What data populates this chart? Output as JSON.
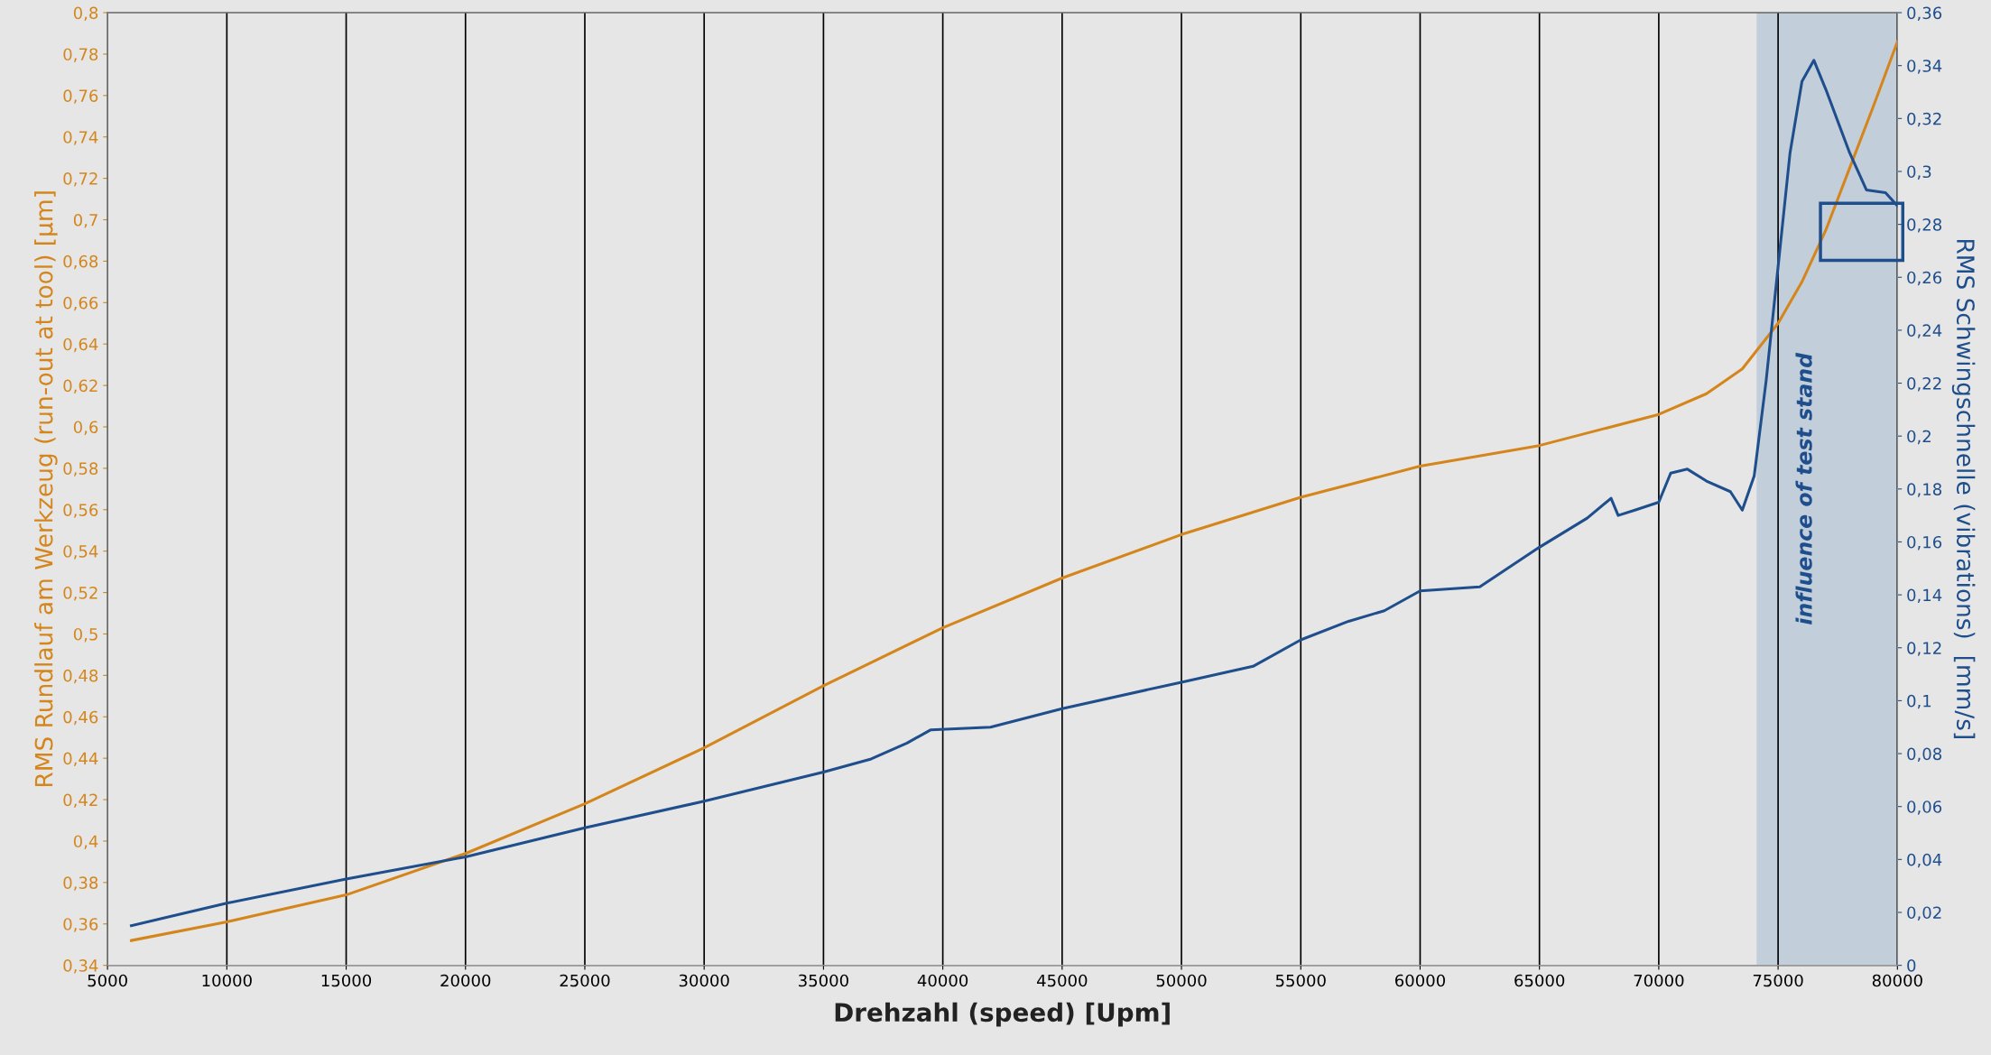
{
  "chart_data": {
    "type": "line",
    "xlabel": "Drehzahl (speed) [Upm]",
    "ylabel": "RMS Rundlauf am Werkzeug (run-out at tool) [µm]",
    "y2label": "RMS Schwingschnelle (vibrations)  [mm/s]",
    "series": [
      {
        "color": "#d4861c",
        "x": [
          6000,
          10000,
          15000,
          20000,
          25000,
          30000,
          35000,
          40000,
          45000,
          50000,
          55000,
          60000,
          65000,
          70000,
          72000,
          73500,
          75000,
          76000,
          77000,
          78000,
          79000,
          80000
        ],
        "values": [
          0.352,
          0.361,
          0.374,
          0.394,
          0.418,
          0.445,
          0.475,
          0.503,
          0.527,
          0.548,
          0.566,
          0.581,
          0.591,
          0.606,
          0.616,
          0.628,
          0.65,
          0.67,
          0.695,
          0.725,
          0.755,
          0.786
        ]
      },
      {
        "color": "#1f4e8c",
        "axis": "y2",
        "x": [
          6000,
          10000,
          15000,
          20000,
          25000,
          30000,
          35000,
          37000,
          38500,
          39500,
          42000,
          45000,
          50000,
          53000,
          55000,
          57000,
          58500,
          60000,
          62500,
          65000,
          67000,
          68000,
          68300,
          69000,
          70000,
          70500,
          71200,
          72000,
          73000,
          73500,
          74000,
          74500,
          75000,
          75500,
          76000,
          76500,
          77000,
          78000,
          78700,
          79500,
          80000
        ],
        "values": [
          0.015,
          0.0235,
          0.0326,
          0.041,
          0.052,
          0.062,
          0.073,
          0.078,
          0.084,
          0.089,
          0.09,
          0.097,
          0.107,
          0.113,
          0.123,
          0.13,
          0.134,
          0.1415,
          0.143,
          0.158,
          0.169,
          0.1765,
          0.17,
          0.172,
          0.175,
          0.186,
          0.1875,
          0.183,
          0.179,
          0.172,
          0.185,
          0.221,
          0.264,
          0.307,
          0.334,
          0.342,
          0.331,
          0.307,
          0.293,
          0.292,
          0.287
        ]
      }
    ],
    "xlim": [
      5000,
      80000
    ],
    "xticks": [
      5000,
      10000,
      15000,
      20000,
      25000,
      30000,
      35000,
      40000,
      45000,
      50000,
      55000,
      60000,
      65000,
      70000,
      75000,
      80000
    ],
    "ylim": [
      0.34,
      0.8
    ],
    "yticks": [
      {
        "value": 0.34,
        "label": "0,34"
      },
      {
        "value": 0.36,
        "label": "0,36"
      },
      {
        "value": 0.38,
        "label": "0,38"
      },
      {
        "value": 0.4,
        "label": "0,4"
      },
      {
        "value": 0.42,
        "label": "0,42"
      },
      {
        "value": 0.44,
        "label": "0,44"
      },
      {
        "value": 0.46,
        "label": "0,46"
      },
      {
        "value": 0.48,
        "label": "0,48"
      },
      {
        "value": 0.5,
        "label": "0,5"
      },
      {
        "value": 0.52,
        "label": "0,52"
      },
      {
        "value": 0.54,
        "label": "0,54"
      },
      {
        "value": 0.56,
        "label": "0,56"
      },
      {
        "value": 0.58,
        "label": "0,58"
      },
      {
        "value": 0.6,
        "label": "0,6"
      },
      {
        "value": 0.62,
        "label": "0,62"
      },
      {
        "value": 0.64,
        "label": "0,64"
      },
      {
        "value": 0.66,
        "label": "0,66"
      },
      {
        "value": 0.68,
        "label": "0,68"
      },
      {
        "value": 0.7,
        "label": "0,7"
      },
      {
        "value": 0.72,
        "label": "0,72"
      },
      {
        "value": 0.74,
        "label": "0,74"
      },
      {
        "value": 0.76,
        "label": "0,76"
      },
      {
        "value": 0.78,
        "label": "0,78"
      },
      {
        "value": 0.8,
        "label": "0,8"
      }
    ],
    "y2lim": [
      0,
      0.36
    ],
    "y2ticks": [
      0,
      {
        "value": 0.02,
        "label": "0,02"
      },
      {
        "value": 0.04,
        "label": "0,04"
      },
      {
        "value": 0.06,
        "label": "0,06"
      },
      {
        "value": 0.08,
        "label": "0,08"
      },
      {
        "value": 0.1,
        "label": "0,1"
      },
      {
        "value": 0.12,
        "label": "0,12"
      },
      {
        "value": 0.14,
        "label": "0,14"
      },
      {
        "value": 0.16,
        "label": "0,16"
      },
      {
        "value": 0.18,
        "label": "0,18"
      },
      {
        "value": 0.2,
        "label": "0,2"
      },
      {
        "value": 0.22,
        "label": "0,22"
      },
      {
        "value": 0.24,
        "label": "0,24"
      },
      {
        "value": 0.26,
        "label": "0,26"
      },
      {
        "value": 0.28,
        "label": "0,28"
      },
      {
        "value": 0.3,
        "label": "0,3"
      },
      {
        "value": 0.32,
        "label": "0,32"
      },
      {
        "value": 0.34,
        "label": "0,34"
      },
      {
        "value": 0.36,
        "label": "0,36"
      }
    ],
    "bands": [
      {
        "axis": "x",
        "from": 74100,
        "to": 80000,
        "label": "influence of test stand",
        "color": "#c3cedb"
      }
    ],
    "grid": "x",
    "marker": "none",
    "line_style": "solid",
    "legend": false
  }
}
